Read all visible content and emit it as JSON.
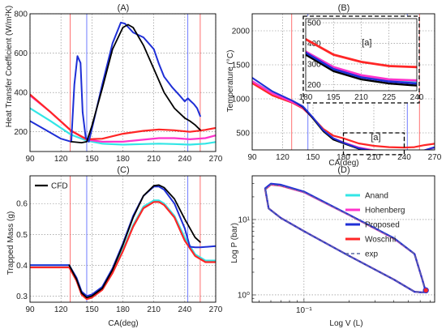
{
  "figure": {
    "colors": {
      "anand": "#33e6e6",
      "hohenberg": "#ff33cc",
      "proposed": "#1f2fd6",
      "woschni": "#ff2626",
      "cfd": "#000000",
      "exp": "#5a6aa0",
      "ivc_line": "#ff4d4d",
      "evo_line": "#4d5dff",
      "grid": "#808080",
      "frame": "#000000"
    }
  },
  "chart_data": [
    {
      "id": "A",
      "type": "line",
      "title": "(A)",
      "xlabel": "",
      "ylabel": "Heat Transfer Coefficient (W/m²K)",
      "xlim": [
        90,
        270
      ],
      "ylim": [
        100,
        800
      ],
      "xticks": [
        "90",
        "120",
        "150",
        "180",
        "210",
        "240",
        "270"
      ],
      "yticks": [
        "200",
        "400",
        "600",
        "800"
      ],
      "grid": true,
      "vlines": [
        {
          "x": 129,
          "color": "ivc_line"
        },
        {
          "x": 145,
          "color": "evo_line"
        },
        {
          "x": 243,
          "color": "evo_line"
        },
        {
          "x": 255,
          "color": "ivc_line"
        }
      ],
      "series": [
        {
          "key": "anand",
          "x": [
            90,
            110,
            130,
            145,
            160,
            180,
            200,
            215,
            230,
            245,
            260,
            270
          ],
          "y": [
            320,
            255,
            185,
            155,
            140,
            135,
            138,
            140,
            138,
            135,
            140,
            148
          ]
        },
        {
          "key": "hohenberg",
          "x": [
            90,
            110,
            130,
            145,
            160,
            180,
            200,
            215,
            230,
            245,
            260,
            270
          ],
          "y": [
            385,
            300,
            205,
            160,
            150,
            150,
            160,
            168,
            168,
            162,
            168,
            182
          ]
        },
        {
          "key": "woschni",
          "x": [
            90,
            110,
            130,
            145,
            160,
            180,
            200,
            215,
            230,
            245,
            260,
            270
          ],
          "y": [
            390,
            300,
            205,
            162,
            165,
            190,
            205,
            212,
            208,
            200,
            210,
            220
          ]
        },
        {
          "key": "proposed",
          "x": [
            90,
            105,
            120,
            130,
            133,
            136,
            139,
            141,
            144,
            147,
            152,
            160,
            170,
            178,
            182,
            190,
            200,
            210,
            215,
            220,
            228,
            235,
            240,
            243,
            246,
            249,
            252,
            255
          ],
          "y": [
            255,
            210,
            165,
            150,
            440,
            585,
            550,
            300,
            170,
            150,
            260,
            440,
            650,
            755,
            750,
            705,
            680,
            620,
            545,
            480,
            425,
            385,
            355,
            370,
            355,
            340,
            320,
            280
          ]
        },
        {
          "key": "cfd",
          "x": [
            130,
            140,
            145,
            150,
            160,
            170,
            180,
            185,
            190,
            200,
            210,
            220,
            230,
            240,
            245,
            250,
            255
          ],
          "y": [
            150,
            145,
            150,
            230,
            420,
            620,
            730,
            745,
            730,
            640,
            520,
            400,
            320,
            270,
            255,
            235,
            210
          ]
        }
      ]
    },
    {
      "id": "B",
      "type": "line",
      "title": "(B)",
      "xlabel": "CA(deg)",
      "ylabel": "Temperature (°C)",
      "xlim": [
        90,
        270
      ],
      "ylim": [
        250,
        2250
      ],
      "xticks": [
        "90",
        "120",
        "150",
        "180",
        "210",
        "240",
        "270"
      ],
      "yticks": [
        "500",
        "1000",
        "1500",
        "2000"
      ],
      "grid": true,
      "vlines": [
        {
          "x": 129,
          "color": "ivc_line"
        },
        {
          "x": 145,
          "color": "evo_line"
        },
        {
          "x": 243,
          "color": "evo_line"
        },
        {
          "x": 255,
          "color": "ivc_line"
        }
      ],
      "annotation": "[a]",
      "series": [
        {
          "key": "woschni",
          "x": [
            90,
            110,
            130,
            140,
            150,
            160,
            170,
            180,
            195,
            210,
            225,
            240,
            250,
            260,
            270
          ],
          "y": [
            1230,
            1050,
            940,
            860,
            720,
            560,
            460,
            420,
            345,
            310,
            290,
            285,
            290,
            320,
            340
          ]
        },
        {
          "key": "anand",
          "x": [
            90,
            110,
            130,
            140,
            150,
            160,
            170,
            180,
            195,
            210,
            225,
            240,
            250,
            260,
            270
          ],
          "y": [
            1260,
            1090,
            960,
            880,
            720,
            540,
            420,
            360,
            285,
            240,
            225,
            215,
            215,
            240,
            280
          ]
        },
        {
          "key": "hohenberg",
          "x": [
            90,
            110,
            130,
            140,
            150,
            160,
            170,
            180,
            195,
            210,
            225,
            240,
            250,
            260,
            270
          ],
          "y": [
            1260,
            1080,
            950,
            870,
            715,
            540,
            420,
            360,
            285,
            245,
            225,
            220,
            220,
            245,
            285
          ]
        },
        {
          "key": "cfd",
          "x": [
            130,
            140,
            150,
            160,
            170,
            180,
            195,
            210,
            225,
            240,
            250,
            255
          ],
          "y": [
            970,
            880,
            710,
            525,
            400,
            345,
            265,
            225,
            205,
            195,
            195,
            200
          ]
        },
        {
          "key": "proposed",
          "x": [
            90,
            110,
            130,
            140,
            150,
            160,
            170,
            180,
            195,
            210,
            225,
            240,
            250,
            260,
            270
          ],
          "y": [
            1310,
            1110,
            970,
            890,
            725,
            540,
            420,
            355,
            275,
            235,
            215,
            205,
            210,
            245,
            290
          ]
        }
      ],
      "inset": {
        "xlim": [
          180,
          240
        ],
        "ylim": [
          170,
          520
        ],
        "xticks": [
          "180",
          "195",
          "210",
          "225",
          "240"
        ],
        "yticks": [
          "200",
          "300",
          "400",
          "500"
        ],
        "label": "[a]"
      }
    },
    {
      "id": "C",
      "type": "line",
      "title": "(C)",
      "xlabel": "CA(deg)",
      "ylabel": "Trapped Mass (g)",
      "xlim": [
        90,
        270
      ],
      "ylim": [
        0.28,
        0.69
      ],
      "xticks": [
        "90",
        "120",
        "150",
        "180",
        "210",
        "240",
        "270"
      ],
      "yticks": [
        "0.3",
        "0.4",
        "0.5",
        "0.6"
      ],
      "grid": true,
      "vlines": [
        {
          "x": 129,
          "color": "ivc_line"
        },
        {
          "x": 145,
          "color": "evo_line"
        },
        {
          "x": 243,
          "color": "evo_line"
        },
        {
          "x": 255,
          "color": "ivc_line"
        }
      ],
      "legend": [
        {
          "key": "cfd",
          "label": "CFD"
        }
      ],
      "series": [
        {
          "key": "anand",
          "x": [
            90,
            128,
            135,
            140,
            145,
            150,
            160,
            170,
            180,
            190,
            200,
            210,
            215,
            220,
            230,
            240,
            250,
            260,
            270
          ],
          "y": [
            0.4,
            0.4,
            0.355,
            0.31,
            0.295,
            0.3,
            0.325,
            0.38,
            0.45,
            0.53,
            0.59,
            0.61,
            0.61,
            0.6,
            0.56,
            0.49,
            0.435,
            0.415,
            0.415
          ]
        },
        {
          "key": "woschni",
          "x": [
            90,
            128,
            135,
            140,
            145,
            150,
            160,
            170,
            180,
            190,
            200,
            210,
            215,
            220,
            230,
            240,
            250,
            260,
            270
          ],
          "y": [
            0.393,
            0.393,
            0.35,
            0.305,
            0.29,
            0.295,
            0.32,
            0.375,
            0.445,
            0.525,
            0.585,
            0.605,
            0.605,
            0.595,
            0.555,
            0.48,
            0.43,
            0.41,
            0.41
          ]
        },
        {
          "key": "proposed",
          "x": [
            90,
            128,
            135,
            140,
            145,
            150,
            160,
            170,
            180,
            190,
            200,
            210,
            215,
            220,
            230,
            240,
            245,
            250,
            255,
            270
          ],
          "y": [
            0.4,
            0.4,
            0.36,
            0.315,
            0.3,
            0.305,
            0.33,
            0.39,
            0.47,
            0.56,
            0.625,
            0.655,
            0.655,
            0.645,
            0.6,
            0.52,
            0.46,
            0.458,
            0.458,
            0.462
          ]
        },
        {
          "key": "cfd",
          "x": [
            128,
            135,
            140,
            145,
            150,
            160,
            170,
            180,
            190,
            200,
            210,
            215,
            220,
            230,
            240,
            250,
            255
          ],
          "y": [
            0.4,
            0.355,
            0.31,
            0.295,
            0.3,
            0.325,
            0.385,
            0.465,
            0.555,
            0.625,
            0.658,
            0.66,
            0.652,
            0.615,
            0.55,
            0.49,
            0.475
          ]
        }
      ]
    },
    {
      "id": "D",
      "type": "line",
      "title": "(D)",
      "xlabel": "Log V (L)",
      "ylabel": "Log P (bar)",
      "xscale": "log",
      "yscale": "log",
      "xlim": [
        0.045,
        0.75
      ],
      "ylim": [
        0.8,
        38
      ],
      "xticks": [
        {
          "v": 0.1,
          "label": "10⁻¹"
        }
      ],
      "yticks": [
        {
          "v": 1,
          "label": "10⁰"
        },
        {
          "v": 10,
          "label": "10¹"
        }
      ],
      "grid": true,
      "legend": [
        {
          "key": "anand",
          "label": "Anand"
        },
        {
          "key": "hohenberg",
          "label": "Hohenberg"
        },
        {
          "key": "proposed",
          "label": "Proposed"
        },
        {
          "key": "woschni",
          "label": "Woschni"
        },
        {
          "key": "exp",
          "label": "exp"
        }
      ],
      "series": [
        {
          "key": "woschni",
          "x": [
            0.055,
            0.06,
            0.07,
            0.1,
            0.2,
            0.4,
            0.55,
            0.62,
            0.65,
            0.66,
            0.62,
            0.55,
            0.4,
            0.2,
            0.1,
            0.07,
            0.058,
            0.055
          ],
          "y": [
            25,
            29,
            28,
            23,
            11.5,
            5.6,
            3.5,
            1.6,
            1.15,
            1.1,
            1.08,
            1.1,
            1.6,
            3.3,
            7.0,
            10.5,
            14,
            25
          ]
        },
        {
          "key": "anand",
          "x": [
            0.055,
            0.06,
            0.07,
            0.1,
            0.2,
            0.4,
            0.55,
            0.62,
            0.65,
            0.66,
            0.62,
            0.55,
            0.4,
            0.2,
            0.1,
            0.07,
            0.058,
            0.055
          ],
          "y": [
            25.5,
            29.5,
            28.5,
            23,
            11.5,
            5.6,
            3.5,
            1.6,
            1.15,
            1.1,
            1.08,
            1.1,
            1.6,
            3.3,
            7.0,
            10.5,
            14,
            25.5
          ]
        },
        {
          "key": "hohenberg",
          "x": [
            0.055,
            0.06,
            0.07,
            0.1,
            0.2,
            0.4,
            0.55,
            0.62,
            0.65,
            0.66,
            0.62,
            0.55,
            0.4,
            0.2,
            0.1,
            0.07,
            0.058,
            0.055
          ],
          "y": [
            25.3,
            29.3,
            28.3,
            23,
            11.5,
            5.6,
            3.5,
            1.6,
            1.15,
            1.1,
            1.08,
            1.1,
            1.6,
            3.3,
            7.0,
            10.5,
            14,
            25.3
          ]
        },
        {
          "key": "proposed",
          "x": [
            0.055,
            0.06,
            0.07,
            0.1,
            0.2,
            0.4,
            0.55,
            0.62,
            0.65,
            0.66,
            0.62,
            0.55,
            0.4,
            0.2,
            0.1,
            0.07,
            0.058,
            0.055
          ],
          "y": [
            26,
            30,
            29,
            23.5,
            11.6,
            5.7,
            3.5,
            1.6,
            1.15,
            1.1,
            1.08,
            1.1,
            1.6,
            3.3,
            7.0,
            10.5,
            14,
            26
          ]
        },
        {
          "key": "exp",
          "x": [
            0.055,
            0.06,
            0.07,
            0.1,
            0.2,
            0.4,
            0.55,
            0.62,
            0.65,
            0.66,
            0.62,
            0.55,
            0.4,
            0.2,
            0.1,
            0.07,
            0.058,
            0.055
          ],
          "y": [
            25,
            29,
            28,
            23,
            11.5,
            5.6,
            3.5,
            1.6,
            1.15,
            1.1,
            1.08,
            1.1,
            1.6,
            3.3,
            7.0,
            10.5,
            14,
            25
          ],
          "dashed": true
        },
        {
          "key": "marker",
          "x": [
            0.655
          ],
          "y": [
            1.15
          ]
        }
      ]
    }
  ]
}
